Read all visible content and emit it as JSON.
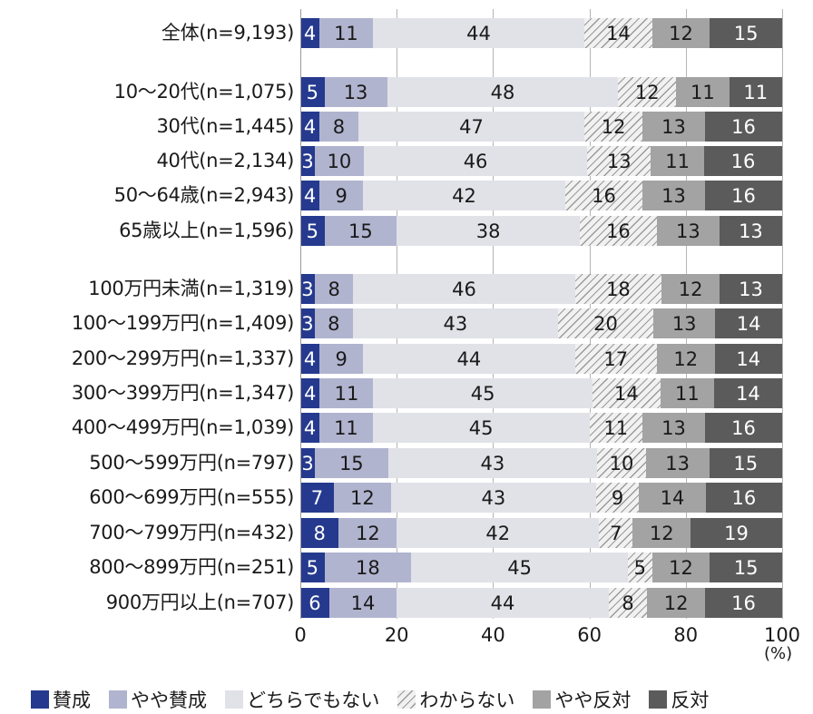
{
  "chart_data": {
    "type": "bar",
    "orientation": "horizontal",
    "stacked": true,
    "percent": true,
    "title": "",
    "xlabel": "(%)",
    "ylabel": "",
    "xlim": [
      0,
      100
    ],
    "x_ticks": [
      "0",
      "20",
      "40",
      "60",
      "80",
      "100"
    ],
    "unit": "(%)",
    "grid": true,
    "legend_position": "bottom",
    "legend": [
      "賛成",
      "やや賛成",
      "どちらでもない",
      "わからない",
      "やや反対",
      "反対"
    ],
    "colors": [
      "#253a8e",
      "#b1b4cf",
      "#e1e2e8",
      "#f1f1f1 (hatched)",
      "#a3a3a3",
      "#5b5b5b"
    ],
    "categories": [
      "全体(n=9,193)",
      "10～20代(n=1,075)",
      "30代(n=1,445)",
      "40代(n=2,134)",
      "50～64歳(n=2,943)",
      "65歳以上(n=1,596)",
      "100万円未満(n=1,319)",
      "100～199万円(n=1,409)",
      "200～299万円(n=1,337)",
      "300～399万円(n=1,347)",
      "400～499万円(n=1,039)",
      "500～599万円(n=797)",
      "600～699万円(n=555)",
      "700～799万円(n=432)",
      "800～899万円(n=251)",
      "900万円以上(n=707)"
    ],
    "series": [
      {
        "name": "賛成",
        "values": [
          4,
          5,
          4,
          3,
          4,
          5,
          3,
          3,
          4,
          4,
          4,
          3,
          7,
          8,
          5,
          6
        ]
      },
      {
        "name": "やや賛成",
        "values": [
          11,
          13,
          8,
          10,
          9,
          15,
          8,
          8,
          9,
          11,
          11,
          15,
          12,
          12,
          18,
          14
        ]
      },
      {
        "name": "どちらでもない",
        "values": [
          44,
          48,
          47,
          46,
          42,
          38,
          46,
          43,
          44,
          45,
          45,
          43,
          43,
          42,
          45,
          44
        ]
      },
      {
        "name": "わからない",
        "values": [
          14,
          12,
          12,
          13,
          16,
          16,
          18,
          20,
          17,
          14,
          11,
          10,
          9,
          7,
          5,
          8
        ]
      },
      {
        "name": "やや反対",
        "values": [
          12,
          11,
          13,
          11,
          13,
          13,
          12,
          13,
          12,
          11,
          13,
          13,
          14,
          12,
          12,
          12
        ]
      },
      {
        "name": "反対",
        "values": [
          15,
          11,
          16,
          16,
          16,
          13,
          13,
          14,
          14,
          14,
          16,
          15,
          16,
          19,
          15,
          16
        ]
      }
    ]
  }
}
